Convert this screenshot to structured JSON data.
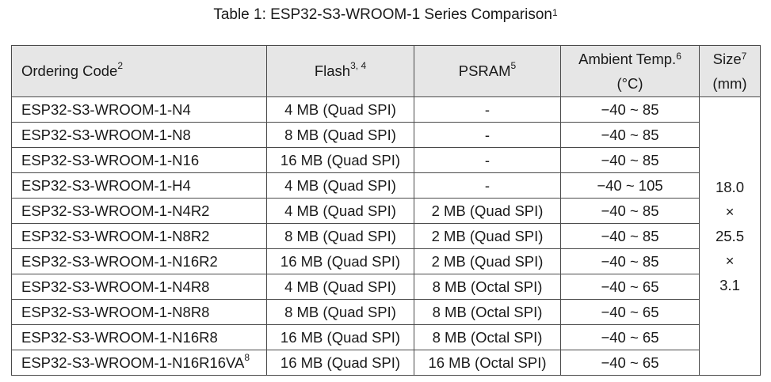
{
  "caption": {
    "text": "Table 1: ESP32-S3-WROOM-1 Series Comparison",
    "note": "1"
  },
  "headers": {
    "ordering_code": {
      "label": "Ordering Code",
      "note": "2"
    },
    "flash": {
      "label": "Flash",
      "note": "3, 4"
    },
    "psram": {
      "label": "PSRAM",
      "note": "5"
    },
    "temp": {
      "label": "Ambient Temp.",
      "note": "6",
      "unit": "(°C)"
    },
    "size": {
      "label": "Size",
      "note": "7",
      "unit": "(mm)"
    }
  },
  "rows": [
    {
      "code": "ESP32-S3-WROOM-1-N4",
      "code_note": "",
      "flash": "4 MB (Quad SPI)",
      "psram": "-",
      "temp": "−40 ~ 85"
    },
    {
      "code": "ESP32-S3-WROOM-1-N8",
      "code_note": "",
      "flash": "8 MB (Quad SPI)",
      "psram": "-",
      "temp": "−40 ~ 85"
    },
    {
      "code": "ESP32-S3-WROOM-1-N16",
      "code_note": "",
      "flash": "16 MB (Quad SPI)",
      "psram": "-",
      "temp": "−40 ~ 85"
    },
    {
      "code": "ESP32-S3-WROOM-1-H4",
      "code_note": "",
      "flash": "4 MB (Quad SPI)",
      "psram": "-",
      "temp": "−40 ~ 105"
    },
    {
      "code": "ESP32-S3-WROOM-1-N4R2",
      "code_note": "",
      "flash": "4 MB (Quad SPI)",
      "psram": "2 MB (Quad SPI)",
      "temp": "−40 ~ 85"
    },
    {
      "code": "ESP32-S3-WROOM-1-N8R2",
      "code_note": "",
      "flash": "8 MB (Quad SPI)",
      "psram": "2 MB (Quad SPI)",
      "temp": "−40 ~ 85"
    },
    {
      "code": "ESP32-S3-WROOM-1-N16R2",
      "code_note": "",
      "flash": "16 MB (Quad SPI)",
      "psram": "2 MB (Quad SPI)",
      "temp": "−40 ~ 85"
    },
    {
      "code": "ESP32-S3-WROOM-1-N4R8",
      "code_note": "",
      "flash": "4 MB (Quad SPI)",
      "psram": "8 MB (Octal SPI)",
      "temp": "−40 ~ 65"
    },
    {
      "code": "ESP32-S3-WROOM-1-N8R8",
      "code_note": "",
      "flash": "8 MB (Quad SPI)",
      "psram": "8 MB (Octal SPI)",
      "temp": "−40 ~ 65"
    },
    {
      "code": "ESP32-S3-WROOM-1-N16R8",
      "code_note": "",
      "flash": "16 MB (Quad SPI)",
      "psram": "8 MB (Octal SPI)",
      "temp": "−40 ~ 65"
    },
    {
      "code": "ESP32-S3-WROOM-1-N16R16VA",
      "code_note": "8",
      "flash": "16 MB (Quad SPI)",
      "psram": "16 MB (Octal SPI)",
      "temp": "−40 ~ 65"
    }
  ],
  "size_cell": [
    "18.0",
    "×",
    "25.5",
    "×",
    "3.1"
  ]
}
